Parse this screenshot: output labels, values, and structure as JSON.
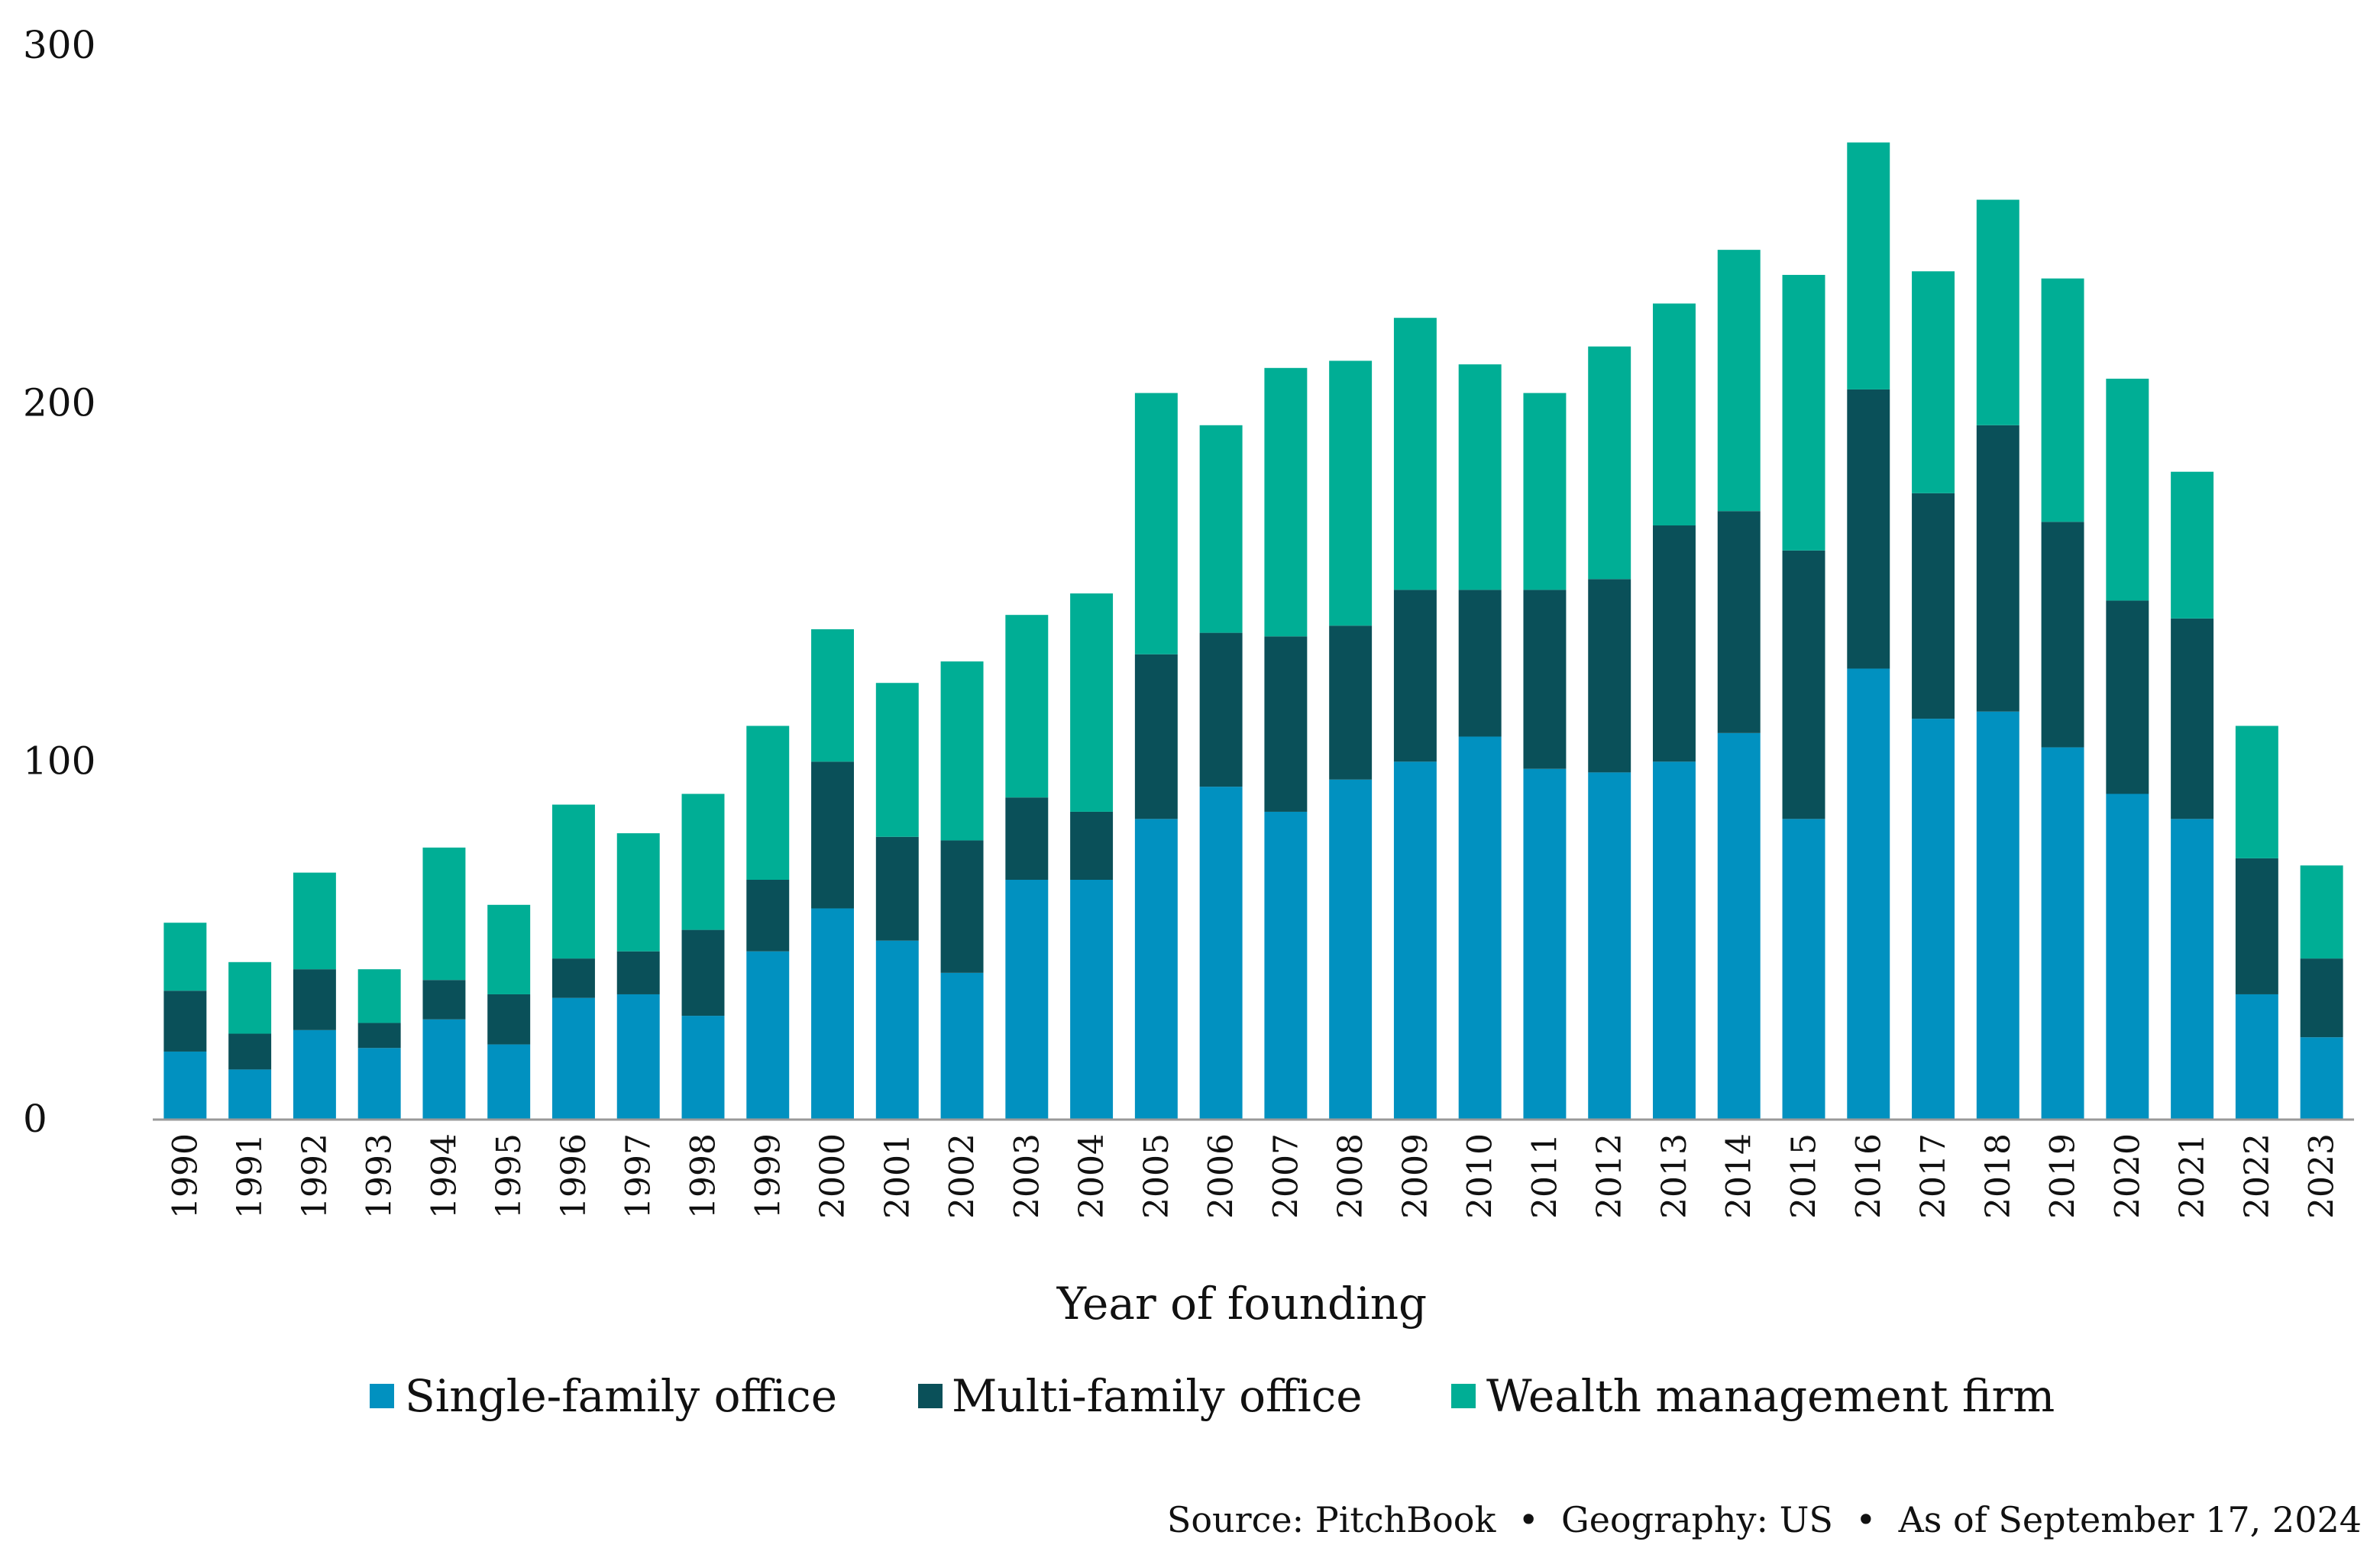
{
  "colors": {
    "single_family": "#0191C0",
    "multi_family": "#0A5059",
    "wealth_mgmt": "#00AE95",
    "axis": "#999999",
    "text": "#111111"
  },
  "chart_data": {
    "type": "bar",
    "stacked": true,
    "title": "",
    "xlabel": "Year of founding",
    "ylabel": "",
    "ylim": [
      0,
      300
    ],
    "yticks": [
      "0",
      "100",
      "200",
      "300"
    ],
    "grid": false,
    "legend_position": "bottom",
    "categories": [
      "1990",
      "1991",
      "1992",
      "1993",
      "1994",
      "1995",
      "1996",
      "1997",
      "1998",
      "1999",
      "2000",
      "2001",
      "2002",
      "2003",
      "2004",
      "2005",
      "2006",
      "2007",
      "2008",
      "2009",
      "2010",
      "2011",
      "2012",
      "2013",
      "2014",
      "2015",
      "2016",
      "2017",
      "2018",
      "2019",
      "2020",
      "2021",
      "2022",
      "2023"
    ],
    "series": [
      {
        "name": "Single-family office",
        "color_key": "single_family",
        "values": [
          19,
          14,
          25,
          20,
          28,
          21,
          34,
          35,
          29,
          47,
          59,
          50,
          41,
          67,
          67,
          84,
          93,
          86,
          95,
          100,
          107,
          98,
          97,
          100,
          108,
          84,
          126,
          112,
          114,
          104,
          91,
          84,
          35,
          23
        ]
      },
      {
        "name": "Multi-family office",
        "color_key": "multi_family",
        "values": [
          17,
          10,
          17,
          7,
          11,
          14,
          11,
          12,
          24,
          20,
          41,
          29,
          37,
          23,
          19,
          46,
          43,
          49,
          43,
          48,
          41,
          50,
          54,
          66,
          62,
          75,
          78,
          63,
          80,
          63,
          54,
          56,
          38,
          22
        ]
      },
      {
        "name": "Wealth management firm",
        "color_key": "wealth_mgmt",
        "values": [
          19,
          20,
          27,
          15,
          37,
          25,
          43,
          33,
          38,
          43,
          37,
          43,
          50,
          51,
          61,
          73,
          58,
          75,
          74,
          76,
          63,
          55,
          65,
          62,
          73,
          77,
          69,
          62,
          63,
          68,
          62,
          41,
          37,
          26
        ]
      }
    ]
  },
  "source_note": "Source: PitchBook  •  Geography: US  •  As of September 17, 2024"
}
